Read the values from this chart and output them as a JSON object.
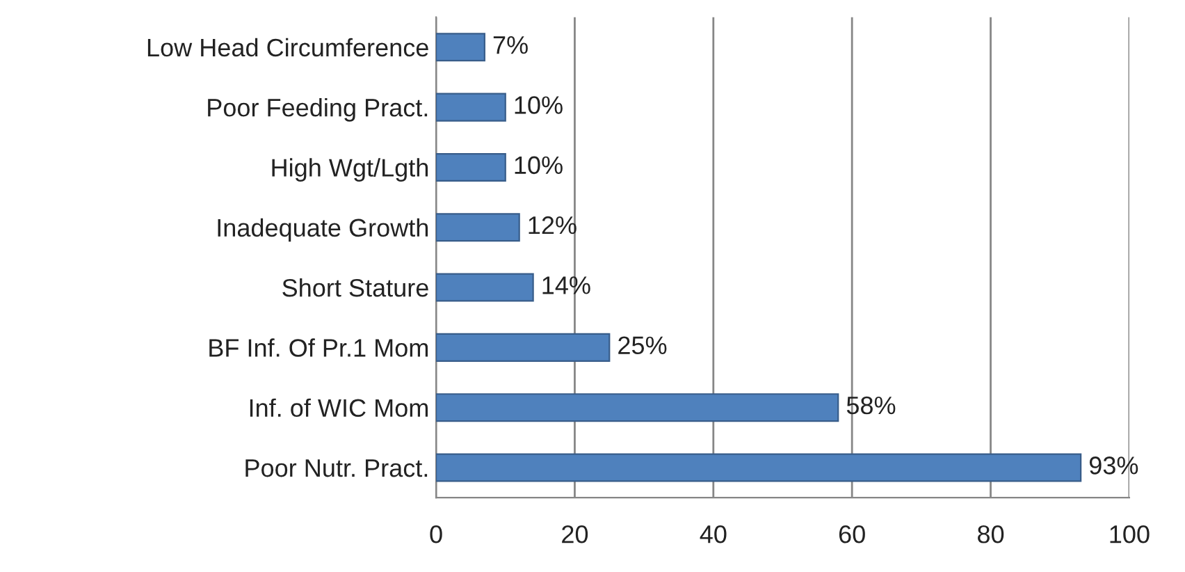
{
  "chart_data": {
    "type": "bar",
    "orientation": "horizontal",
    "categories": [
      "Low Head Circumference",
      "Poor Feeding Pract.",
      "High Wgt/Lgth",
      "Inadequate Growth",
      "Short Stature",
      "BF Inf. Of Pr.1 Mom",
      "Inf. of WIC Mom",
      "Poor Nutr. Pract."
    ],
    "values": [
      7,
      10,
      10,
      12,
      14,
      25,
      58,
      93
    ],
    "value_labels": [
      "7%",
      "10%",
      "10%",
      "12%",
      "14%",
      "25%",
      "58%",
      "93%"
    ],
    "color": "#4f81bd",
    "xlim": [
      0,
      100
    ],
    "xticks": [
      0,
      20,
      40,
      60,
      80,
      100
    ],
    "grid": "x"
  }
}
